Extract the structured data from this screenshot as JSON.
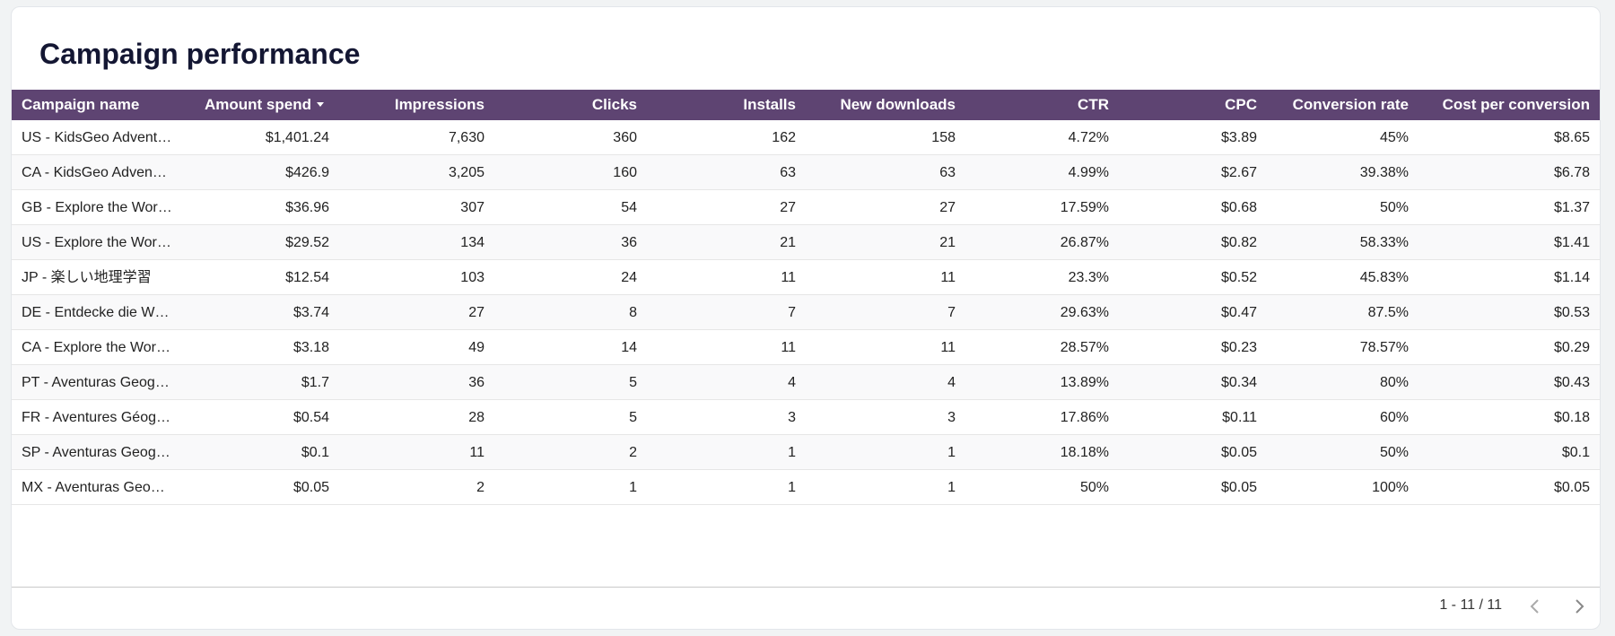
{
  "header": {
    "title": "Campaign performance"
  },
  "table": {
    "columns": [
      "Campaign name",
      "Amount spend",
      "Impressions",
      "Clicks",
      "Installs",
      "New downloads",
      "CTR",
      "CPC",
      "Conversion rate",
      "Cost per conversion"
    ],
    "rows": [
      [
        "US - KidsGeo Advent…",
        "$1,401.24",
        "7,630",
        "360",
        "162",
        "158",
        "4.72%",
        "$3.89",
        "45%",
        "$8.65"
      ],
      [
        "CA - KidsGeo Adven…",
        "$426.9",
        "3,205",
        "160",
        "63",
        "63",
        "4.99%",
        "$2.67",
        "39.38%",
        "$6.78"
      ],
      [
        "GB - Explore the Wor…",
        "$36.96",
        "307",
        "54",
        "27",
        "27",
        "17.59%",
        "$0.68",
        "50%",
        "$1.37"
      ],
      [
        "US - Explore the Wor…",
        "$29.52",
        "134",
        "36",
        "21",
        "21",
        "26.87%",
        "$0.82",
        "58.33%",
        "$1.41"
      ],
      [
        "JP - 楽しい地理学習",
        "$12.54",
        "103",
        "24",
        "11",
        "11",
        "23.3%",
        "$0.52",
        "45.83%",
        "$1.14"
      ],
      [
        "DE - Entdecke die W…",
        "$3.74",
        "27",
        "8",
        "7",
        "7",
        "29.63%",
        "$0.47",
        "87.5%",
        "$0.53"
      ],
      [
        "CA - Explore the Wor…",
        "$3.18",
        "49",
        "14",
        "11",
        "11",
        "28.57%",
        "$0.23",
        "78.57%",
        "$0.29"
      ],
      [
        "PT - Aventuras Geog…",
        "$1.7",
        "36",
        "5",
        "4",
        "4",
        "13.89%",
        "$0.34",
        "80%",
        "$0.43"
      ],
      [
        "FR - Aventures Géog…",
        "$0.54",
        "28",
        "5",
        "3",
        "3",
        "17.86%",
        "$0.11",
        "60%",
        "$0.18"
      ],
      [
        "SP - Aventuras Geog…",
        "$0.1",
        "11",
        "2",
        "1",
        "1",
        "18.18%",
        "$0.05",
        "50%",
        "$0.1"
      ],
      [
        "MX - Aventuras Geo…",
        "$0.05",
        "2",
        "1",
        "1",
        "1",
        "50%",
        "$0.05",
        "100%",
        "$0.05"
      ]
    ]
  },
  "pagination": {
    "range": "1 - 11 / 11"
  }
}
